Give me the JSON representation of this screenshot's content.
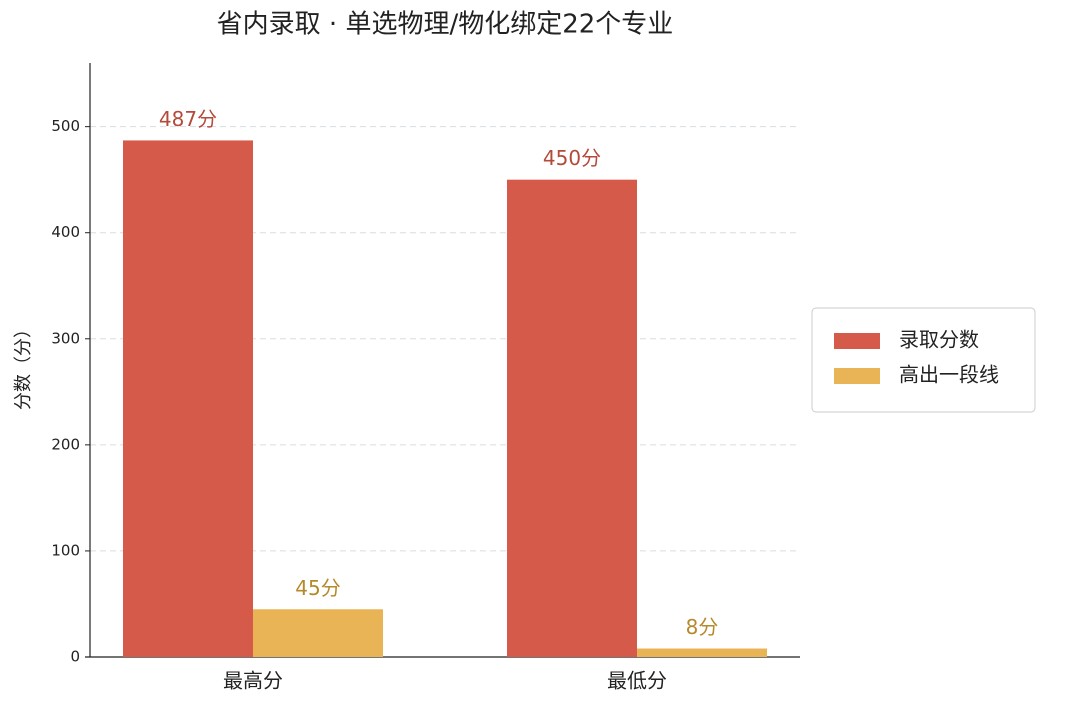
{
  "chart_data": {
    "type": "bar",
    "title": "省内录取 · 单选物理/物化绑定22个专业",
    "y_label": "分数（分）",
    "categories": [
      "最高分",
      "最低分"
    ],
    "series": [
      {
        "name": "录取分数",
        "color": "#d65a4a",
        "values": [
          487,
          450
        ],
        "value_labels": [
          "487分",
          "450分"
        ]
      },
      {
        "name": "高出一段线",
        "color": "#e8b455",
        "values": [
          45,
          8
        ],
        "value_labels": [
          "45分",
          "8分"
        ]
      }
    ],
    "ylim": [
      0,
      560
    ],
    "yticks": [
      0,
      100,
      200,
      300,
      400,
      500
    ],
    "grid": true,
    "legend": "right"
  }
}
